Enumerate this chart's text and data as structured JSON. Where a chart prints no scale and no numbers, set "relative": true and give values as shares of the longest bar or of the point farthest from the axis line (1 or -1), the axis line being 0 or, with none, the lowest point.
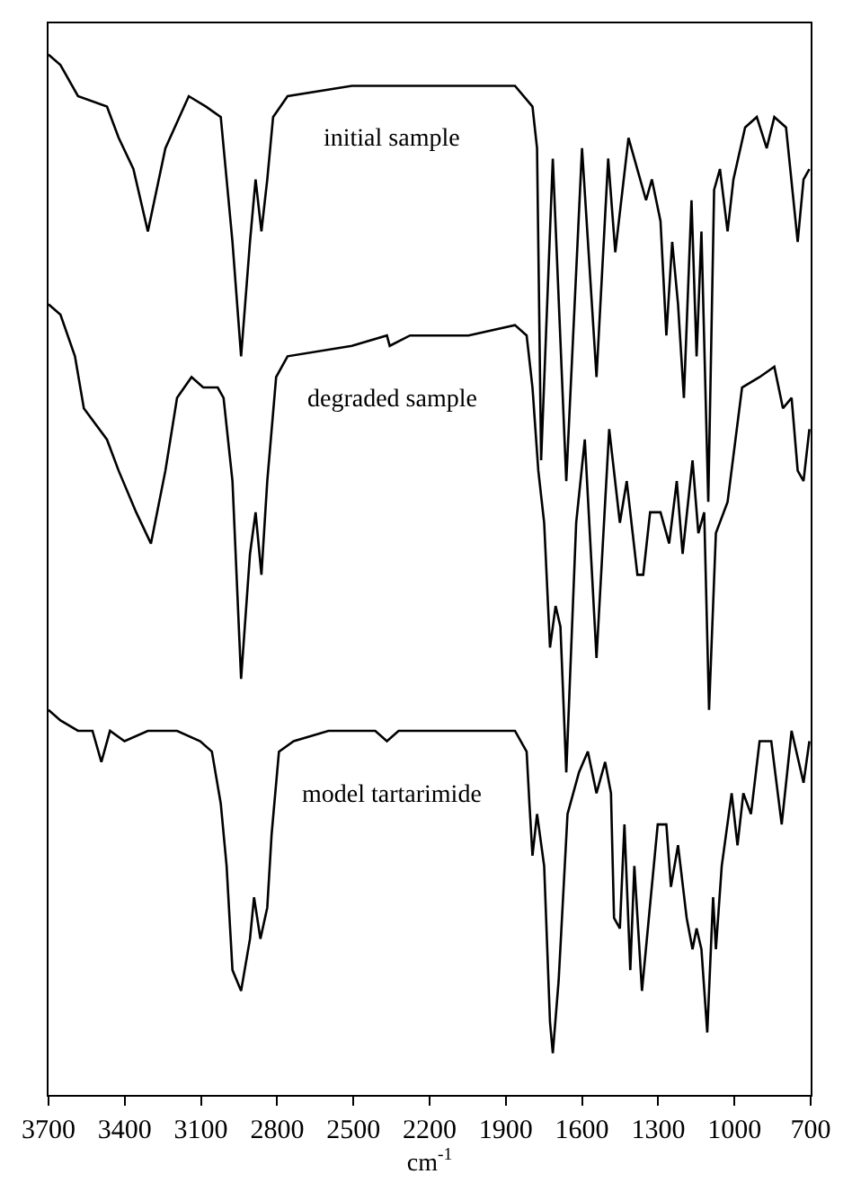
{
  "chart_data": {
    "type": "line",
    "xlabel": "cm$^{-1}$",
    "relative": true,
    "xlim": [
      3700,
      700
    ],
    "xticks": [
      3700,
      3400,
      3100,
      2800,
      2500,
      2200,
      1900,
      1600,
      1300,
      1000,
      700
    ],
    "legend": false,
    "marker": "none",
    "line_style": "solid",
    "tick_labels": "x",
    "series": [
      {
        "name": "initial sample",
        "color": "#000000",
        "x": [
          3700,
          3653,
          3584,
          3470,
          3424,
          3366,
          3309,
          3240,
          3148,
          3080,
          3022,
          2976,
          2942,
          2907,
          2885,
          2862,
          2839,
          2816,
          2759,
          2506,
          2357,
          2345,
          2277,
          2047,
          1864,
          1795,
          1777,
          1761,
          1715,
          1662,
          1600,
          1543,
          1497,
          1469,
          1417,
          1371,
          1348,
          1325,
          1291,
          1268,
          1245,
          1222,
          1199,
          1169,
          1149,
          1130,
          1103,
          1080,
          1057,
          1027,
          1004,
          958,
          912,
          873,
          843,
          797,
          751,
          728,
          705
        ],
        "values": [
          1.0,
          0.99,
          0.96,
          0.95,
          0.92,
          0.89,
          0.83,
          0.91,
          0.96,
          0.95,
          0.94,
          0.82,
          0.71,
          0.82,
          0.88,
          0.83,
          0.88,
          0.94,
          0.96,
          0.97,
          0.97,
          0.97,
          0.97,
          0.97,
          0.97,
          0.95,
          0.91,
          0.61,
          0.9,
          0.59,
          0.91,
          0.69,
          0.9,
          0.81,
          0.92,
          0.88,
          0.86,
          0.88,
          0.84,
          0.73,
          0.82,
          0.76,
          0.67,
          0.86,
          0.71,
          0.83,
          0.57,
          0.87,
          0.89,
          0.83,
          0.88,
          0.93,
          0.94,
          0.91,
          0.94,
          0.93,
          0.82,
          0.88,
          0.89
        ]
      },
      {
        "name": "degraded sample",
        "color": "#000000",
        "x": [
          3700,
          3653,
          3596,
          3561,
          3470,
          3424,
          3355,
          3297,
          3240,
          3194,
          3137,
          3091,
          3034,
          3011,
          2976,
          2942,
          2907,
          2885,
          2862,
          2839,
          2804,
          2759,
          2506,
          2368,
          2357,
          2277,
          2047,
          1864,
          1818,
          1795,
          1772,
          1749,
          1726,
          1704,
          1685,
          1662,
          1623,
          1589,
          1543,
          1493,
          1451,
          1424,
          1382,
          1359,
          1332,
          1291,
          1257,
          1227,
          1204,
          1165,
          1142,
          1119,
          1100,
          1073,
          1027,
          970,
          901,
          843,
          809,
          775,
          751,
          728,
          705
        ],
        "values": [
          0.76,
          0.75,
          0.71,
          0.66,
          0.63,
          0.6,
          0.56,
          0.53,
          0.6,
          0.67,
          0.69,
          0.68,
          0.68,
          0.67,
          0.59,
          0.4,
          0.52,
          0.56,
          0.5,
          0.59,
          0.69,
          0.71,
          0.72,
          0.73,
          0.72,
          0.73,
          0.73,
          0.74,
          0.73,
          0.68,
          0.6,
          0.55,
          0.43,
          0.47,
          0.45,
          0.31,
          0.55,
          0.63,
          0.42,
          0.64,
          0.55,
          0.59,
          0.5,
          0.5,
          0.56,
          0.56,
          0.53,
          0.59,
          0.52,
          0.61,
          0.54,
          0.56,
          0.37,
          0.54,
          0.57,
          0.68,
          0.69,
          0.7,
          0.66,
          0.67,
          0.6,
          0.59,
          0.64
        ]
      },
      {
        "name": "model tartarimide",
        "color": "#000000",
        "x": [
          3700,
          3653,
          3584,
          3527,
          3492,
          3458,
          3401,
          3309,
          3194,
          3103,
          3057,
          3022,
          2999,
          2976,
          2942,
          2907,
          2891,
          2866,
          2839,
          2822,
          2793,
          2735,
          2598,
          2414,
          2368,
          2322,
          2047,
          1864,
          1818,
          1807,
          1795,
          1777,
          1749,
          1726,
          1715,
          1692,
          1657,
          1612,
          1577,
          1543,
          1509,
          1486,
          1474,
          1451,
          1433,
          1410,
          1394,
          1364,
          1337,
          1302,
          1268,
          1250,
          1222,
          1188,
          1165,
          1149,
          1130,
          1107,
          1084,
          1073,
          1050,
          1011,
          988,
          965,
          935,
          901,
          855,
          814,
          775,
          728,
          705
        ],
        "values": [
          0.37,
          0.36,
          0.35,
          0.35,
          0.32,
          0.35,
          0.34,
          0.35,
          0.35,
          0.34,
          0.33,
          0.28,
          0.22,
          0.12,
          0.1,
          0.15,
          0.19,
          0.15,
          0.18,
          0.25,
          0.33,
          0.34,
          0.35,
          0.35,
          0.34,
          0.35,
          0.35,
          0.35,
          0.33,
          0.28,
          0.23,
          0.27,
          0.22,
          0.07,
          0.04,
          0.11,
          0.27,
          0.31,
          0.33,
          0.29,
          0.32,
          0.29,
          0.17,
          0.16,
          0.26,
          0.12,
          0.22,
          0.1,
          0.17,
          0.26,
          0.26,
          0.2,
          0.24,
          0.17,
          0.14,
          0.16,
          0.14,
          0.06,
          0.19,
          0.14,
          0.22,
          0.29,
          0.24,
          0.29,
          0.27,
          0.34,
          0.34,
          0.26,
          0.35,
          0.3,
          0.34
        ]
      }
    ]
  }
}
